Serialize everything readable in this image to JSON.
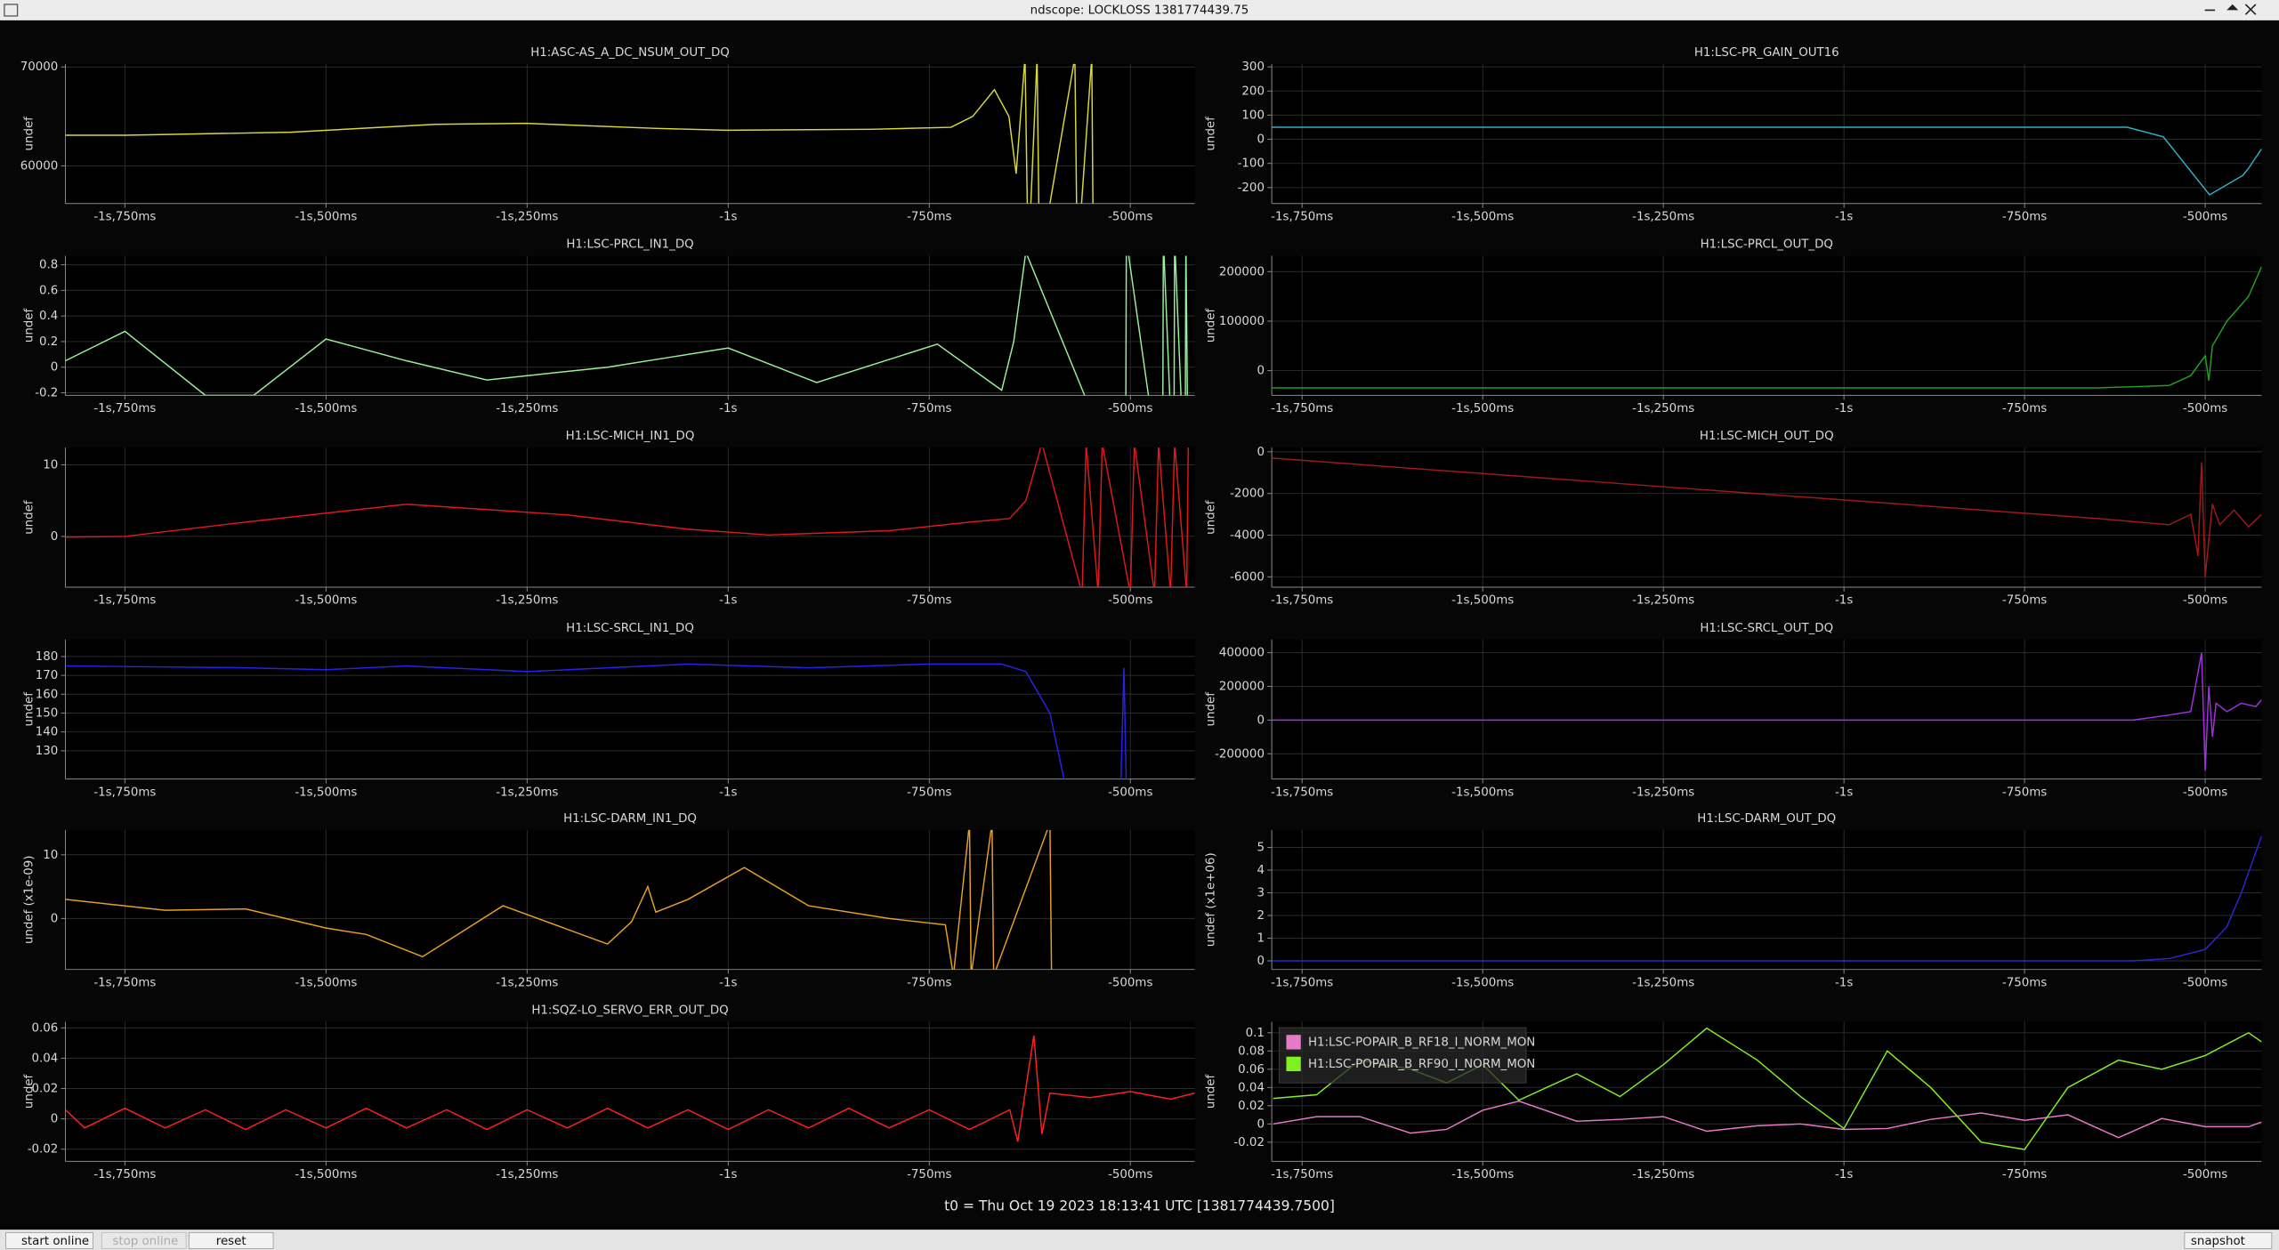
{
  "window": {
    "title": "ndscope: LOCKLOSS 1381774439.75"
  },
  "t0_label": "t0 = Thu Oct 19 2023 18:13:41 UTC [1381774439.7500]",
  "buttons": [
    "start online",
    "stop online",
    "reset",
    "snapshot"
  ],
  "chart_data": [
    {
      "type": "line",
      "title": "H1:ASC-AS_A_DC_NSUM_OUT_DQ",
      "y_label": "undef",
      "color": "#d8d83a",
      "grid": true,
      "x": [
        -1.824,
        -1.75,
        -1.544,
        -1.364,
        -1.252,
        -1.093,
        -1.003,
        -0.822,
        -0.723,
        -0.696,
        -0.669,
        -0.651,
        -0.642,
        -0.631,
        -0.627,
        -0.616,
        -0.613,
        -0.569,
        -0.566,
        -0.548,
        -0.546
      ],
      "values": [
        63100,
        63100,
        63400,
        64200,
        64300,
        63800,
        63600,
        63700,
        63900,
        65000,
        67700,
        65000,
        59200,
        71000,
        50000,
        71000,
        50000,
        71000,
        50000,
        71000,
        50000
      ],
      "xlim": [
        -1.824,
        -0.42
      ],
      "ylim": [
        56200,
        70300
      ],
      "xticks": [
        {
          "value": -1.75,
          "label": "-1s,750ms"
        },
        {
          "value": -1.5,
          "label": "-1s,500ms"
        },
        {
          "value": -1.25,
          "label": "-1s,250ms"
        },
        {
          "value": -1,
          "label": "-1s"
        },
        {
          "value": -0.75,
          "label": "-750ms"
        },
        {
          "value": -0.5,
          "label": "-500ms"
        }
      ],
      "yticks": [
        60000,
        70000
      ]
    },
    {
      "type": "line",
      "title": "H1:LSC-PR_GAIN_OUT16",
      "y_label": "undef",
      "color": "#30b0c8",
      "grid": true,
      "x": [
        -1.792,
        -1.5,
        -1.0,
        -0.608,
        -0.558,
        -0.494,
        -0.448,
        -0.44,
        -0.422
      ],
      "values": [
        50,
        50,
        50,
        50,
        10,
        -230,
        -150,
        -120,
        -40
      ],
      "xlim": [
        -1.792,
        -0.422
      ],
      "ylim": [
        -266,
        312
      ],
      "xticks": [
        {
          "value": -1.75,
          "label": "-1s,750ms"
        },
        {
          "value": -1.5,
          "label": "-1s,500ms"
        },
        {
          "value": -1.25,
          "label": "-1s,250ms"
        },
        {
          "value": -1,
          "label": "-1s"
        },
        {
          "value": -0.75,
          "label": "-750ms"
        },
        {
          "value": -0.5,
          "label": "-500ms"
        }
      ],
      "yticks": [
        -200,
        -100,
        0,
        100,
        200,
        300
      ]
    },
    {
      "type": "line",
      "title": "H1:LSC-PRCL_IN1_DQ",
      "y_label": "undef",
      "color": "#98f098",
      "grid": true,
      "x": [
        -1.824,
        -1.75,
        -1.65,
        -1.59,
        -1.5,
        -1.4,
        -1.3,
        -1.15,
        -1.0,
        -0.89,
        -0.74,
        -0.66,
        -0.645,
        -0.63,
        -0.506,
        -0.505,
        -0.46,
        -0.459,
        -0.446,
        -0.445,
        -0.432,
        -0.431,
        -0.428
      ],
      "values": [
        0.05,
        0.28,
        -0.22,
        -0.22,
        0.22,
        0.05,
        -0.1,
        0.0,
        0.15,
        -0.12,
        0.18,
        -0.18,
        0.2,
        0.9,
        -1,
        1,
        -1,
        1,
        -1,
        1,
        -1,
        1,
        -1
      ],
      "xlim": [
        -1.824,
        -0.42
      ],
      "ylim": [
        -0.22,
        0.87
      ],
      "xticks": [
        {
          "value": -1.75,
          "label": "-1s,750ms"
        },
        {
          "value": -1.5,
          "label": "-1s,500ms"
        },
        {
          "value": -1.25,
          "label": "-1s,250ms"
        },
        {
          "value": -1,
          "label": "-1s"
        },
        {
          "value": -0.75,
          "label": "-750ms"
        },
        {
          "value": -0.5,
          "label": "-500ms"
        }
      ],
      "yticks": [
        -0.2,
        0,
        0.2,
        0.4,
        0.6,
        0.8
      ]
    },
    {
      "type": "line",
      "title": "H1:LSC-PRCL_OUT_DQ",
      "y_label": "undef",
      "color": "#20a020",
      "grid": true,
      "x": [
        -1.792,
        -1.2,
        -0.65,
        -0.55,
        -0.52,
        -0.5,
        -0.495,
        -0.49,
        -0.47,
        -0.44,
        -0.422
      ],
      "values": [
        -35000,
        -35000,
        -35000,
        -30000,
        -10000,
        30000,
        -20000,
        50000,
        100000,
        150000,
        210000
      ],
      "xlim": [
        -1.792,
        -0.422
      ],
      "ylim": [
        -50000,
        232000
      ],
      "xticks": [
        {
          "value": -1.75,
          "label": "-1s,750ms"
        },
        {
          "value": -1.5,
          "label": "-1s,500ms"
        },
        {
          "value": -1.25,
          "label": "-1s,250ms"
        },
        {
          "value": -1,
          "label": "-1s"
        },
        {
          "value": -0.75,
          "label": "-750ms"
        },
        {
          "value": -0.5,
          "label": "-500ms"
        }
      ],
      "yticks": [
        0,
        100000,
        200000
      ]
    },
    {
      "type": "line",
      "title": "H1:LSC-MICH_IN1_DQ",
      "y_label": "undef",
      "color": "#e01818",
      "grid": true,
      "x": [
        -1.824,
        -1.75,
        -1.6,
        -1.4,
        -1.2,
        -1.05,
        -0.95,
        -0.8,
        -0.7,
        -0.65,
        -0.63,
        -0.61,
        -0.56,
        -0.555,
        -0.54,
        -0.535,
        -0.5,
        -0.495,
        -0.47,
        -0.465,
        -0.45,
        -0.445,
        -0.43,
        -0.428
      ],
      "values": [
        -0.1,
        0,
        2,
        4.5,
        3,
        1,
        0.2,
        0.8,
        2,
        2.5,
        5,
        13,
        -8,
        13,
        -8,
        13,
        -8,
        13,
        -8,
        13,
        -8,
        13,
        -8,
        13
      ],
      "xlim": [
        -1.824,
        -0.42
      ],
      "ylim": [
        -7.1,
        12.4
      ],
      "xticks": [
        {
          "value": -1.75,
          "label": "-1s,750ms"
        },
        {
          "value": -1.5,
          "label": "-1s,500ms"
        },
        {
          "value": -1.25,
          "label": "-1s,250ms"
        },
        {
          "value": -1,
          "label": "-1s"
        },
        {
          "value": -0.75,
          "label": "-750ms"
        },
        {
          "value": -0.5,
          "label": "-500ms"
        }
      ],
      "yticks": [
        0,
        10
      ]
    },
    {
      "type": "line",
      "title": "H1:LSC-MICH_OUT_DQ",
      "y_label": "undef",
      "color": "#a01818",
      "grid": true,
      "x": [
        -1.792,
        -0.65,
        -0.55,
        -0.52,
        -0.51,
        -0.505,
        -0.5,
        -0.49,
        -0.48,
        -0.46,
        -0.44,
        -0.422
      ],
      "values": [
        -300,
        -3200,
        -3500,
        -3000,
        -5000,
        -500,
        -6000,
        -2500,
        -3500,
        -2800,
        -3600,
        -3000
      ],
      "xlim": [
        -1.792,
        -0.422
      ],
      "ylim": [
        -6500,
        200
      ],
      "xticks": [
        {
          "value": -1.75,
          "label": "-1s,750ms"
        },
        {
          "value": -1.5,
          "label": "-1s,500ms"
        },
        {
          "value": -1.25,
          "label": "-1s,250ms"
        },
        {
          "value": -1,
          "label": "-1s"
        },
        {
          "value": -0.75,
          "label": "-750ms"
        },
        {
          "value": -0.5,
          "label": "-500ms"
        }
      ],
      "yticks": [
        -6000,
        -4000,
        -2000,
        0
      ]
    },
    {
      "type": "line",
      "title": "H1:LSC-SRCL_IN1_DQ",
      "y_label": "undef",
      "color": "#2424e8",
      "grid": true,
      "x": [
        -1.824,
        -1.6,
        -1.5,
        -1.4,
        -1.25,
        -1.05,
        -0.9,
        -0.75,
        -0.66,
        -0.63,
        -0.6,
        -0.58,
        -0.512,
        -0.508,
        -0.505
      ],
      "values": [
        175,
        174,
        173,
        175,
        172,
        176,
        174,
        176,
        176,
        172,
        150,
        110,
        110,
        174,
        110
      ],
      "xlim": [
        -1.824,
        -0.42
      ],
      "ylim": [
        115,
        189
      ],
      "xticks": [
        {
          "value": -1.75,
          "label": "-1s,750ms"
        },
        {
          "value": -1.5,
          "label": "-1s,500ms"
        },
        {
          "value": -1.25,
          "label": "-1s,250ms"
        },
        {
          "value": -1,
          "label": "-1s"
        },
        {
          "value": -0.75,
          "label": "-750ms"
        },
        {
          "value": -0.5,
          "label": "-500ms"
        }
      ],
      "yticks": [
        130,
        140,
        150,
        160,
        170,
        180
      ]
    },
    {
      "type": "line",
      "title": "H1:LSC-SRCL_OUT_DQ",
      "y_label": "undef",
      "color": "#a030e0",
      "grid": true,
      "x": [
        -1.792,
        -0.6,
        -0.55,
        -0.52,
        -0.505,
        -0.5,
        -0.495,
        -0.49,
        -0.485,
        -0.47,
        -0.45,
        -0.43,
        -0.422
      ],
      "values": [
        0,
        0,
        30000,
        50000,
        400000,
        -300000,
        200000,
        -100000,
        100000,
        50000,
        100000,
        80000,
        120000
      ],
      "xlim": [
        -1.792,
        -0.422
      ],
      "ylim": [
        -350000,
        478000
      ],
      "xticks": [
        {
          "value": -1.75,
          "label": "-1s,750ms"
        },
        {
          "value": -1.5,
          "label": "-1s,500ms"
        },
        {
          "value": -1.25,
          "label": "-1s,250ms"
        },
        {
          "value": -1,
          "label": "-1s"
        },
        {
          "value": -0.75,
          "label": "-750ms"
        },
        {
          "value": -0.5,
          "label": "-500ms"
        }
      ],
      "yticks": [
        -200000,
        0,
        200000,
        400000
      ]
    },
    {
      "type": "line",
      "title": "H1:LSC-DARM_IN1_DQ",
      "y_label": "undef (x1e-09)",
      "color": "#e8a020",
      "grid": true,
      "x": [
        -1.824,
        -1.7,
        -1.6,
        -1.5,
        -1.45,
        -1.38,
        -1.28,
        -1.15,
        -1.12,
        -1.1,
        -1.09,
        -1.05,
        -0.98,
        -0.9,
        -0.8,
        -0.73,
        -0.72,
        -0.7,
        -0.698,
        -0.672,
        -0.67,
        -0.6,
        -0.598
      ],
      "values": [
        3,
        1.3,
        1.5,
        -1.5,
        -2.5,
        -6,
        2,
        -4,
        -0.5,
        5,
        1,
        3,
        8,
        2,
        0,
        -1,
        -9,
        15,
        -9,
        15,
        -9,
        15,
        -9
      ],
      "xlim": [
        -1.824,
        -0.42
      ],
      "ylim": [
        -8,
        13.9
      ],
      "xticks": [
        {
          "value": -1.75,
          "label": "-1s,750ms"
        },
        {
          "value": -1.5,
          "label": "-1s,500ms"
        },
        {
          "value": -1.25,
          "label": "-1s,250ms"
        },
        {
          "value": -1,
          "label": "-1s"
        },
        {
          "value": -0.75,
          "label": "-750ms"
        },
        {
          "value": -0.5,
          "label": "-500ms"
        }
      ],
      "yticks": [
        0,
        10
      ]
    },
    {
      "type": "line",
      "title": "H1:LSC-DARM_OUT_DQ",
      "y_label": "undef (x1e+06)",
      "color": "#2828d8",
      "grid": true,
      "x": [
        -1.792,
        -0.6,
        -0.55,
        -0.5,
        -0.47,
        -0.45,
        -0.422
      ],
      "values": [
        0,
        0,
        0.1,
        0.5,
        1.5,
        3,
        5.5
      ],
      "xlim": [
        -1.792,
        -0.422
      ],
      "ylim": [
        -0.38,
        5.77
      ],
      "xticks": [
        {
          "value": -1.75,
          "label": "-1s,750ms"
        },
        {
          "value": -1.5,
          "label": "-1s,500ms"
        },
        {
          "value": -1.25,
          "label": "-1s,250ms"
        },
        {
          "value": -1,
          "label": "-1s"
        },
        {
          "value": -0.75,
          "label": "-750ms"
        },
        {
          "value": -0.5,
          "label": "-500ms"
        }
      ],
      "yticks": [
        0,
        1,
        2,
        3,
        4,
        5
      ]
    },
    {
      "type": "line",
      "title": "H1:SQZ-LO_SERVO_ERR_OUT_DQ",
      "y_label": "undef",
      "color": "#ff2020",
      "grid": true,
      "x": [
        -1.824,
        -1.8,
        -1.75,
        -1.7,
        -1.65,
        -1.6,
        -1.55,
        -1.5,
        -1.45,
        -1.4,
        -1.35,
        -1.3,
        -1.25,
        -1.2,
        -1.15,
        -1.1,
        -1.05,
        -1.0,
        -0.95,
        -0.9,
        -0.85,
        -0.8,
        -0.75,
        -0.7,
        -0.65,
        -0.64,
        -0.63,
        -0.62,
        -0.61,
        -0.6,
        -0.55,
        -0.5,
        -0.45,
        -0.42
      ],
      "values": [
        0.006,
        -0.006,
        0.007,
        -0.006,
        0.006,
        -0.007,
        0.006,
        -0.006,
        0.007,
        -0.006,
        0.006,
        -0.007,
        0.006,
        -0.006,
        0.007,
        -0.006,
        0.006,
        -0.007,
        0.006,
        -0.006,
        0.007,
        -0.006,
        0.006,
        -0.007,
        0.006,
        -0.015,
        0.02,
        0.055,
        -0.01,
        0.017,
        0.014,
        0.018,
        0.013,
        0.017
      ],
      "xlim": [
        -1.824,
        -0.42
      ],
      "ylim": [
        -0.028,
        0.064
      ],
      "xticks": [
        {
          "value": -1.75,
          "label": "-1s,750ms"
        },
        {
          "value": -1.5,
          "label": "-1s,500ms"
        },
        {
          "value": -1.25,
          "label": "-1s,250ms"
        },
        {
          "value": -1,
          "label": "-1s"
        },
        {
          "value": -0.75,
          "label": "-750ms"
        },
        {
          "value": -0.5,
          "label": "-500ms"
        }
      ],
      "yticks": [
        -0.02,
        0,
        0.02,
        0.04,
        0.06
      ]
    },
    {
      "type": "line",
      "y_label": "undef",
      "grid": true,
      "legend": "top-left",
      "x": [
        -1.79,
        -1.73,
        -1.67,
        -1.6,
        -1.55,
        -1.5,
        -1.45,
        -1.37,
        -1.31,
        -1.25,
        -1.19,
        -1.12,
        -1.06,
        -1.0,
        -0.94,
        -0.88,
        -0.81,
        -0.75,
        -0.69,
        -0.62,
        -0.56,
        -0.5,
        -0.44,
        -0.422
      ],
      "series": [
        {
          "name": "H1:LSC-POPAIR_B_RF18_I_NORM_MON",
          "color": "#e878c8",
          "values": [
            0,
            0.008,
            0.008,
            -0.01,
            -0.006,
            0.015,
            0.025,
            0.003,
            0.005,
            0.008,
            -0.008,
            -0.002,
            0,
            -0.006,
            -0.005,
            0.005,
            0.012,
            0.004,
            0.01,
            -0.015,
            0.006,
            -0.003,
            -0.003,
            0.002
          ]
        },
        {
          "name": "H1:LSC-POPAIR_B_RF90_I_NORM_MON",
          "color": "#80f020",
          "values": [
            0.028,
            0.032,
            0.07,
            0.06,
            0.045,
            0.065,
            0.026,
            0.055,
            0.03,
            0.065,
            0.105,
            0.07,
            0.03,
            -0.005,
            0.08,
            0.04,
            -0.02,
            -0.028,
            0.04,
            0.07,
            0.06,
            0.075,
            0.1,
            0.09
          ]
        }
      ],
      "xlim": [
        -1.792,
        -0.422
      ],
      "ylim": [
        -0.041,
        0.112
      ],
      "xticks": [
        {
          "value": -1.75,
          "label": "-1s,750ms"
        },
        {
          "value": -1.5,
          "label": "-1s,500ms"
        },
        {
          "value": -1.25,
          "label": "-1s,250ms"
        },
        {
          "value": -1,
          "label": "-1s"
        },
        {
          "value": -0.75,
          "label": "-750ms"
        },
        {
          "value": -0.5,
          "label": "-500ms"
        }
      ],
      "yticks": [
        -0.02,
        0,
        0.02,
        0.04,
        0.06,
        0.08,
        0.1
      ]
    }
  ]
}
